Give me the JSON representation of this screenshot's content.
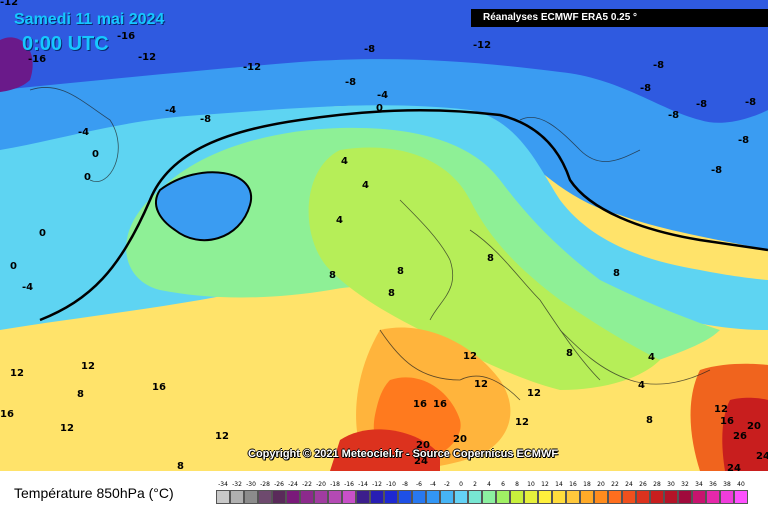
{
  "header": {
    "date": "Samedi 11 mai 2024",
    "time": "0:00 UTC",
    "source": "Réanalyses ECMWF ERA5 0.25 °"
  },
  "copyright": "Copyright © 2021 Meteociel.fr - Source Copernicus ECMWF",
  "footer": {
    "title": "Température 850hPa (°C)"
  },
  "scale": {
    "labels": [
      "-34",
      "-32",
      "-30",
      "-28",
      "-26",
      "-24",
      "-22",
      "-20",
      "-18",
      "-16",
      "-14",
      "-12",
      "-10",
      "-8",
      "-6",
      "-4",
      "-2",
      "0",
      "2",
      "4",
      "6",
      "8",
      "10",
      "12",
      "14",
      "16",
      "18",
      "20",
      "22",
      "24",
      "26",
      "28",
      "30",
      "32",
      "34",
      "36",
      "38",
      "40"
    ],
    "colors": [
      "#c8c8c8",
      "#b0b0b0",
      "#8c8c8c",
      "#6e4a6e",
      "#5a2a5a",
      "#7a1a7a",
      "#8c2a8c",
      "#a03ca0",
      "#b44ab4",
      "#c850c8",
      "#3c1e8c",
      "#281eb4",
      "#1e28d2",
      "#1e50e6",
      "#2878f0",
      "#3296f5",
      "#46b4f5",
      "#64d2f5",
      "#78e6d2",
      "#8cf0a0",
      "#a0f064",
      "#c8f03c",
      "#e6f03c",
      "#fff03c",
      "#ffdc3c",
      "#ffc83c",
      "#ffaa28",
      "#ff8c1e",
      "#ff6e1e",
      "#f0501e",
      "#dc321e",
      "#c81e1e",
      "#b41428",
      "#a00a3c",
      "#c8146e",
      "#e628aa",
      "#f03cdc",
      "#ff50ff"
    ]
  },
  "isotherm_labels": [
    {
      "text": "-12"
    },
    {
      "text": "-16"
    },
    {
      "text": "-16"
    },
    {
      "text": "-12"
    },
    {
      "text": "-12"
    },
    {
      "text": "-8"
    },
    {
      "text": "-12"
    },
    {
      "text": "-8"
    },
    {
      "text": "-8"
    },
    {
      "text": "-8"
    },
    {
      "text": "-8"
    },
    {
      "text": "-8"
    },
    {
      "text": "-8"
    },
    {
      "text": "-8"
    },
    {
      "text": "-8"
    },
    {
      "text": "-4"
    },
    {
      "text": "0"
    },
    {
      "text": "-4"
    },
    {
      "text": "-8"
    },
    {
      "text": "-4"
    },
    {
      "text": "0"
    },
    {
      "text": "0"
    },
    {
      "text": "4"
    },
    {
      "text": "4"
    },
    {
      "text": "0"
    },
    {
      "text": "4"
    },
    {
      "text": "-4"
    },
    {
      "text": "0"
    },
    {
      "text": "8"
    },
    {
      "text": "8"
    },
    {
      "text": "8"
    },
    {
      "text": "8"
    },
    {
      "text": "8"
    },
    {
      "text": "12"
    },
    {
      "text": "12"
    },
    {
      "text": "12"
    },
    {
      "text": "12"
    },
    {
      "text": "12"
    },
    {
      "text": "16"
    },
    {
      "text": "16"
    },
    {
      "text": "16"
    },
    {
      "text": "12"
    },
    {
      "text": "12"
    },
    {
      "text": "20"
    },
    {
      "text": "20"
    },
    {
      "text": "24"
    },
    {
      "text": "16"
    },
    {
      "text": "20"
    },
    {
      "text": "24"
    },
    {
      "text": "8"
    },
    {
      "text": "4"
    },
    {
      "text": "4"
    },
    {
      "text": "8"
    },
    {
      "text": "12"
    },
    {
      "text": "16"
    },
    {
      "text": "26"
    },
    {
      "text": "24"
    },
    {
      "text": "12"
    },
    {
      "text": "8"
    },
    {
      "text": "8"
    }
  ]
}
